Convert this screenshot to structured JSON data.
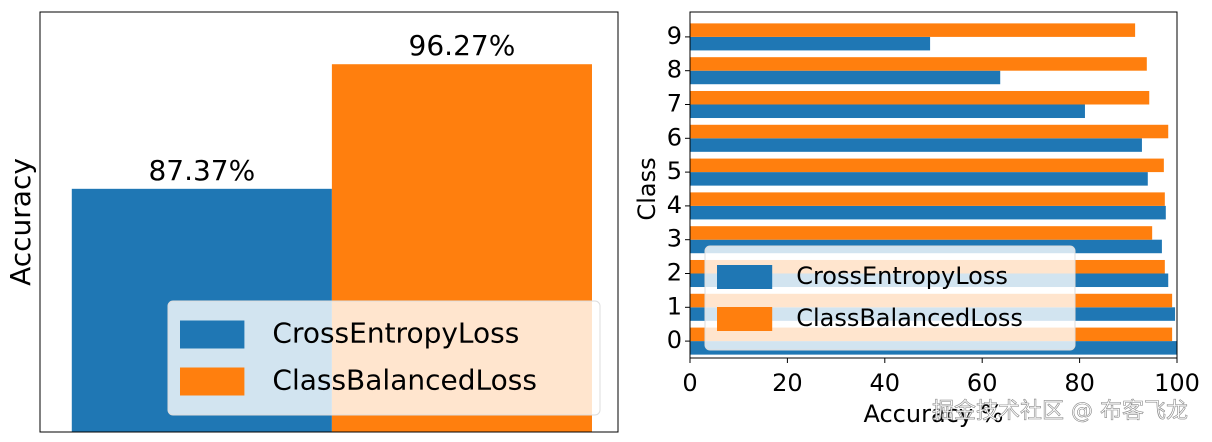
{
  "chart_data": [
    {
      "type": "bar",
      "ylabel": "Accuracy",
      "categories": [
        null
      ],
      "series": [
        {
          "name": "CrossEntropyLoss",
          "color": "#1f77b4",
          "values": [
            87.37
          ],
          "value_labels": [
            "87.37%"
          ]
        },
        {
          "name": "ClassBalancedLoss",
          "color": "#ff7f0e",
          "values": [
            96.27
          ],
          "value_labels": [
            "96.27%"
          ]
        }
      ],
      "ylim": [
        70,
        100
      ],
      "legend": "lower right"
    },
    {
      "type": "barh",
      "xlabel": "Accuracy %",
      "ylabel": "Class",
      "categories": [
        "0",
        "1",
        "2",
        "3",
        "4",
        "5",
        "6",
        "7",
        "8",
        "9"
      ],
      "series": [
        {
          "name": "CrossEntropyLoss",
          "color": "#1f77b4",
          "values": [
            100,
            99.6,
            98.2,
            96.9,
            97.7,
            94.0,
            92.8,
            81.1,
            63.7,
            49.3
          ]
        },
        {
          "name": "ClassBalancedLoss",
          "color": "#ff7f0e",
          "values": [
            99.0,
            99.0,
            97.5,
            94.9,
            97.5,
            97.3,
            98.2,
            94.3,
            93.8,
            91.4
          ]
        }
      ],
      "xlim": [
        0,
        100
      ],
      "xticks": [
        0,
        20,
        40,
        60,
        80,
        100
      ],
      "legend": "lower left"
    }
  ],
  "watermark": "掘金技术社区 @ 布客飞龙"
}
